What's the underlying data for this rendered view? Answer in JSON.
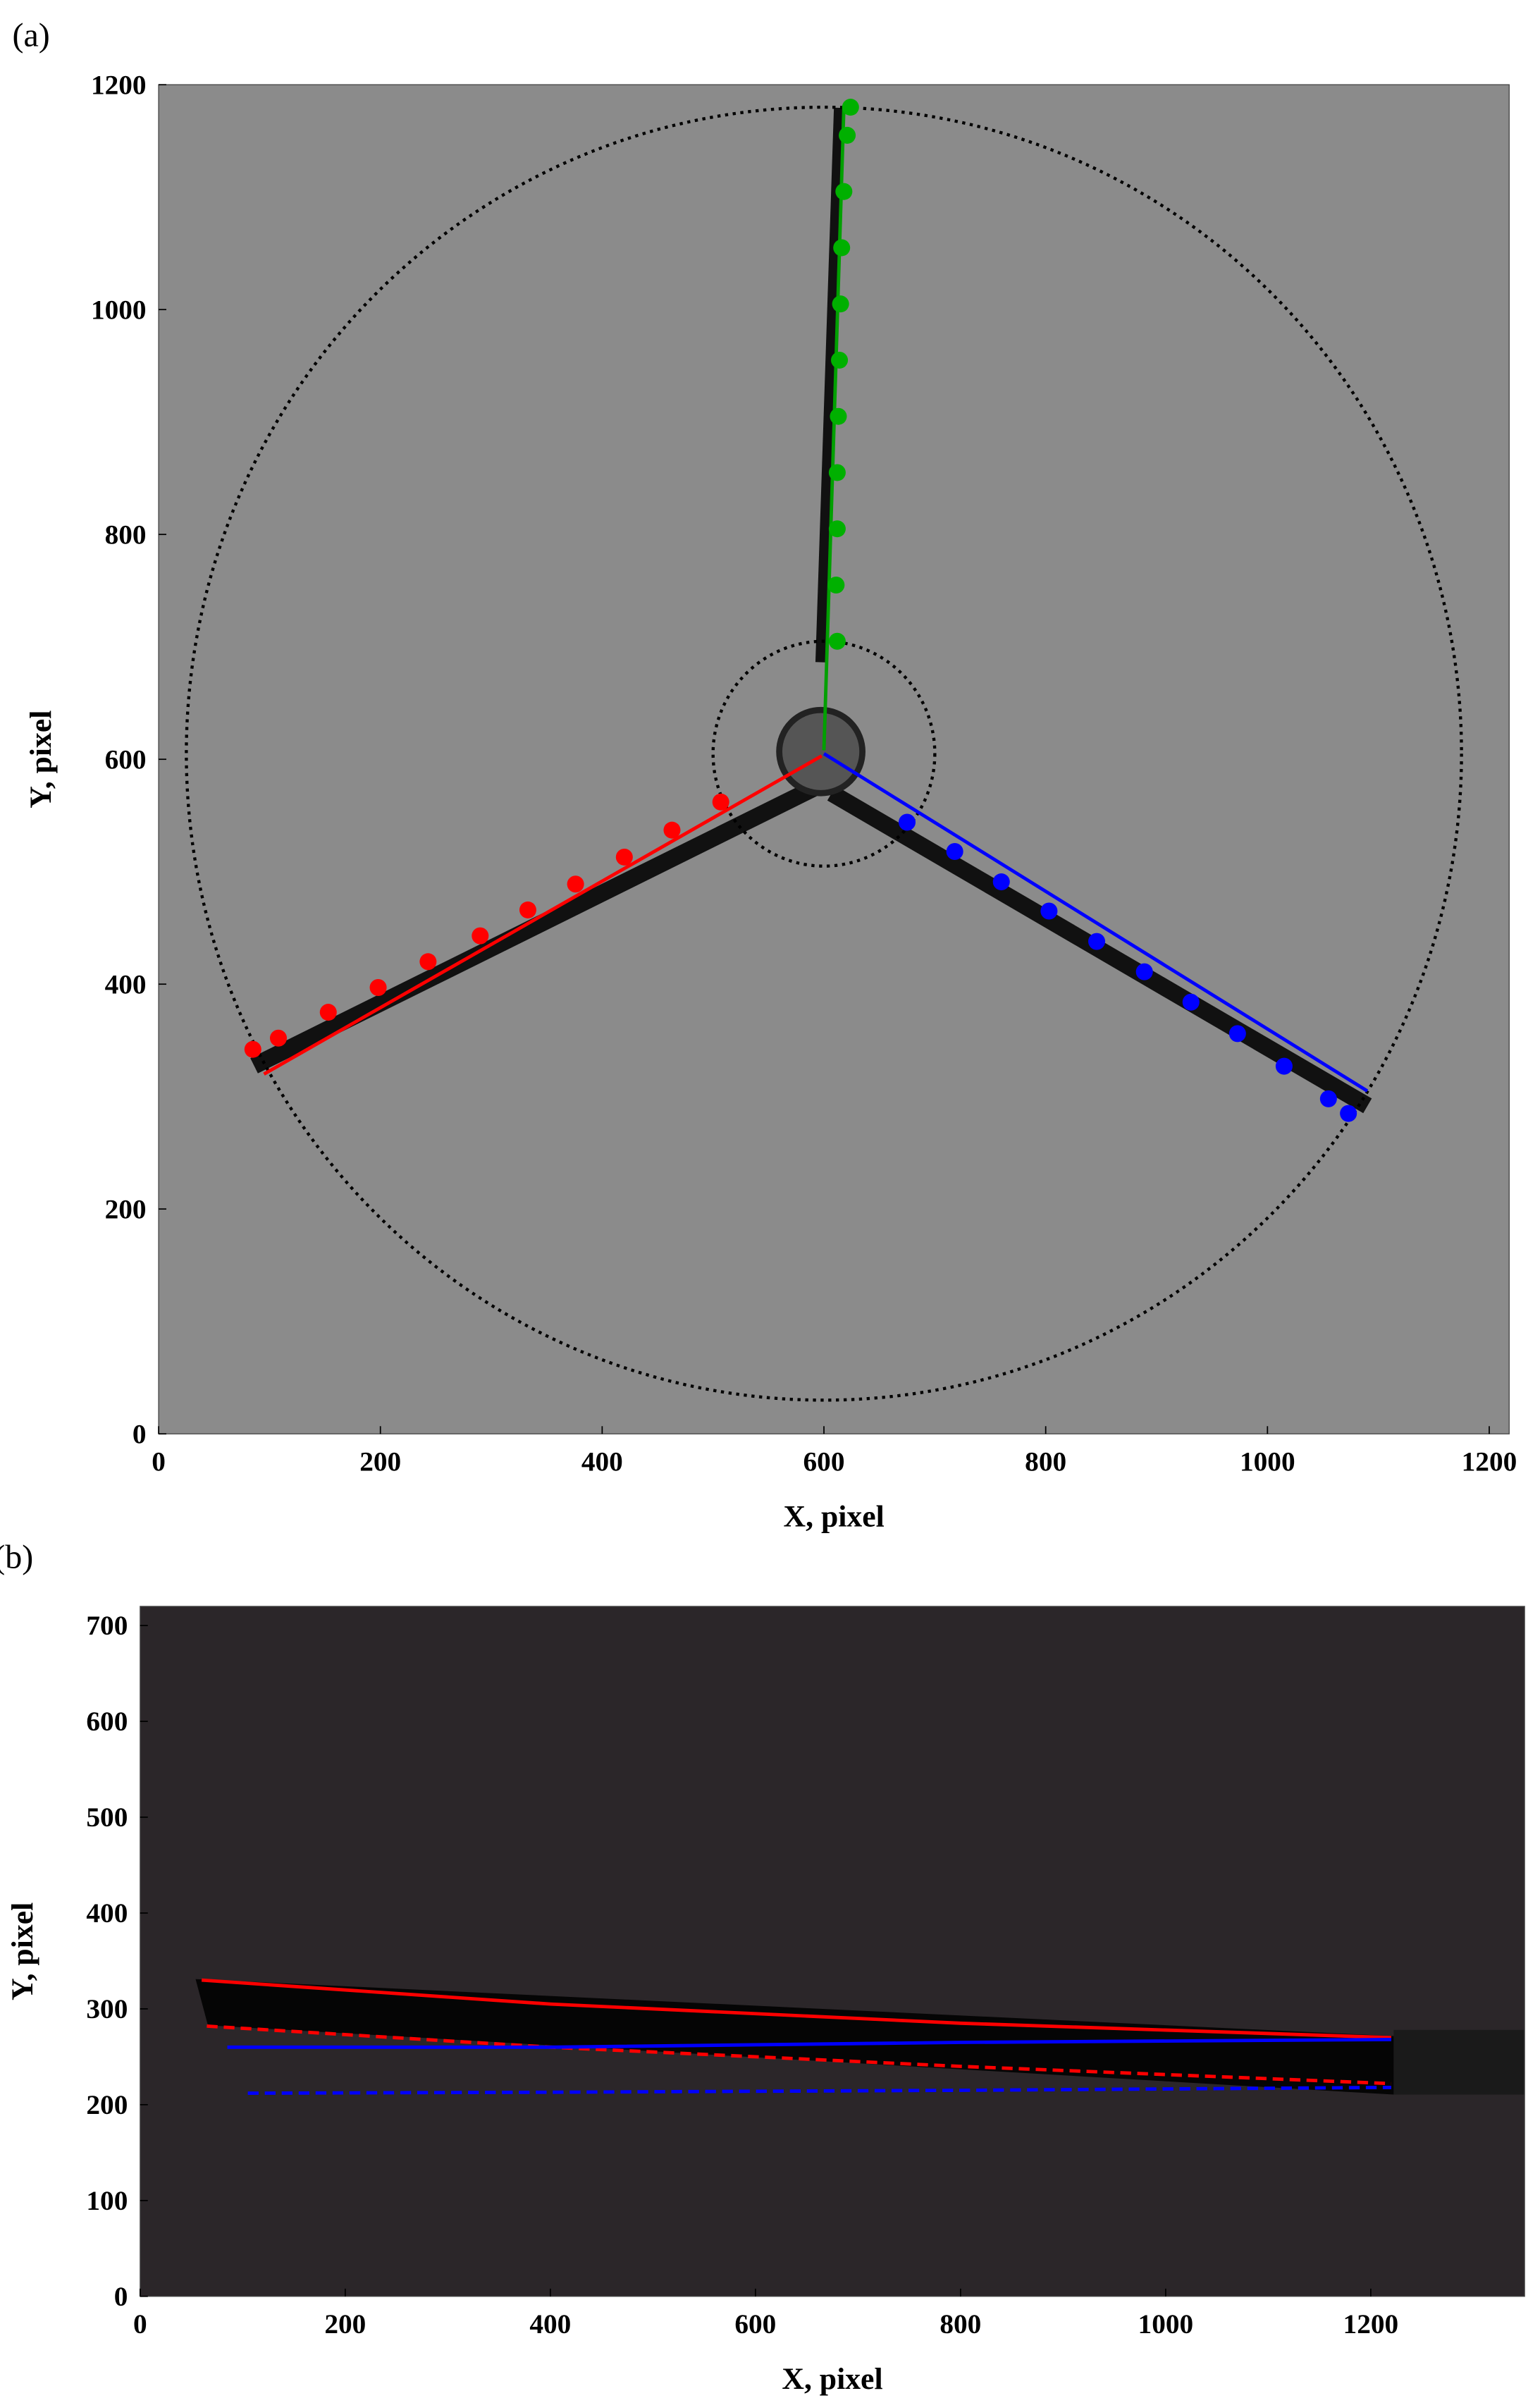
{
  "chart_data": [
    {
      "type": "scatter",
      "label": "(a)",
      "xlabel": "X, pixel",
      "ylabel": "Y, pixel",
      "xlim": [
        0,
        1218
      ],
      "ylim": [
        0,
        1200
      ],
      "xticks": [
        0,
        200,
        400,
        600,
        800,
        1000,
        1200
      ],
      "yticks": [
        0,
        200,
        400,
        600,
        800,
        1000,
        1200
      ],
      "background": "#8b8b8b",
      "circles": [
        {
          "cx": 600,
          "cy": 605,
          "r": 575
        },
        {
          "cx": 600,
          "cy": 605,
          "r": 100
        }
      ],
      "series": [
        {
          "color": "#ff0000",
          "mode": "line",
          "dash": false,
          "x": [
            95,
            598
          ],
          "values": [
            320,
            603
          ]
        },
        {
          "color": "#00a000",
          "mode": "line",
          "dash": false,
          "x": [
            600,
            618
          ],
          "values": [
            608,
            1180
          ]
        },
        {
          "color": "#0000ff",
          "mode": "line",
          "dash": false,
          "x": [
            600,
            1090
          ],
          "values": [
            605,
            305
          ]
        },
        {
          "color": "#ff0000",
          "mode": "markers",
          "x": [
            85,
            108,
            153,
            198,
            243,
            290,
            333,
            376,
            420,
            463,
            507
          ],
          "values": [
            342,
            352,
            375,
            397,
            420,
            443,
            466,
            489,
            513,
            537,
            562
          ]
        },
        {
          "color": "#00b000",
          "mode": "markers",
          "x": [
            612,
            611,
            612,
            612,
            613,
            614,
            615,
            616,
            618,
            621,
            624
          ],
          "values": [
            705,
            755,
            805,
            855,
            905,
            955,
            1005,
            1055,
            1105,
            1155,
            1180
          ]
        },
        {
          "color": "#0000ff",
          "mode": "markers",
          "x": [
            675,
            718,
            760,
            803,
            846,
            889,
            931,
            973,
            1015,
            1055,
            1073
          ],
          "values": [
            544,
            518,
            491,
            465,
            438,
            411,
            384,
            356,
            327,
            298,
            285
          ]
        }
      ]
    },
    {
      "type": "line",
      "label": "(b)",
      "xlabel": "X, pixel",
      "ylabel": "Y, pixel",
      "xlim": [
        0,
        1350
      ],
      "ylim": [
        0,
        720
      ],
      "xticks": [
        0,
        200,
        400,
        600,
        800,
        1000,
        1200
      ],
      "yticks": [
        0,
        100,
        200,
        300,
        400,
        500,
        600,
        700
      ],
      "background": "#2b2629",
      "series": [
        {
          "color": "#ff0000",
          "mode": "line",
          "dash": false,
          "x": [
            60,
            400,
            800,
            1220
          ],
          "values": [
            330,
            305,
            285,
            270
          ]
        },
        {
          "color": "#ff0000",
          "mode": "line",
          "dash": true,
          "x": [
            65,
            400,
            800,
            1220
          ],
          "values": [
            282,
            260,
            240,
            222
          ]
        },
        {
          "color": "#0000ff",
          "mode": "line",
          "dash": false,
          "x": [
            85,
            400,
            800,
            1220
          ],
          "values": [
            260,
            260,
            265,
            268
          ]
        },
        {
          "color": "#0000ff",
          "mode": "line",
          "dash": true,
          "x": [
            105,
            400,
            800,
            1220
          ],
          "values": [
            212,
            213,
            215,
            218
          ]
        }
      ]
    }
  ]
}
